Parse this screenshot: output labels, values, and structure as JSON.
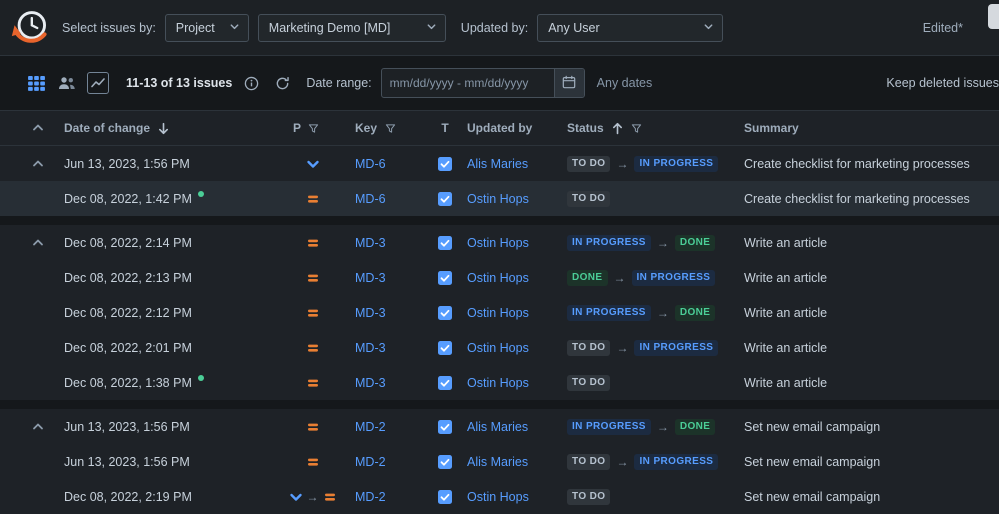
{
  "topbar": {
    "select_issues_label": "Select issues by:",
    "mode_dropdown": "Project",
    "project_dropdown": "Marketing Demo [MD]",
    "updated_by_label": "Updated by:",
    "user_dropdown": "Any User",
    "edited_label": "Edited*"
  },
  "toolbar": {
    "issues_count": "11-13 of 13 issues",
    "date_range_label": "Date range:",
    "date_range_placeholder": "mm/dd/yyyy - mm/dd/yyyy",
    "any_dates_label": "Any dates",
    "keep_deleted_label": "Keep deleted issues"
  },
  "icons": {
    "arrow_right": "→"
  },
  "colors": {
    "accent_blue": "#579DFF",
    "done_green": "#4BCE97",
    "medium_priority_orange": "#E97F33",
    "row_bg": "#1E2227",
    "page_bg": "#15181B"
  },
  "table": {
    "headers": {
      "date": "Date of change",
      "priority": "P",
      "key": "Key",
      "type": "T",
      "updated_by": "Updated by",
      "status": "Status",
      "summary": "Summary"
    },
    "groups": [
      {
        "rows": [
          {
            "date": "Jun 13, 2023, 1:56 PM",
            "dot": false,
            "priorities": [
              "low"
            ],
            "key": "MD-6",
            "user": "Alis Maries",
            "statuses": [
              {
                "label": "TO DO",
                "type": "todo"
              },
              {
                "label": "IN PROGRESS",
                "type": "inprogress"
              }
            ],
            "summary": "Create checklist for marketing processes",
            "selected": false
          },
          {
            "date": "Dec 08, 2022, 1:42 PM",
            "dot": true,
            "priorities": [
              "medium"
            ],
            "key": "MD-6",
            "user": "Ostin Hops",
            "statuses": [
              {
                "label": "TO DO",
                "type": "todo"
              }
            ],
            "summary": "Create checklist for marketing processes",
            "selected": true
          }
        ]
      },
      {
        "rows": [
          {
            "date": "Dec 08, 2022, 2:14 PM",
            "dot": false,
            "priorities": [
              "medium"
            ],
            "key": "MD-3",
            "user": "Ostin Hops",
            "statuses": [
              {
                "label": "IN PROGRESS",
                "type": "inprogress"
              },
              {
                "label": "DONE",
                "type": "done"
              }
            ],
            "summary": "Write an article",
            "selected": false
          },
          {
            "date": "Dec 08, 2022, 2:13 PM",
            "dot": false,
            "priorities": [
              "medium"
            ],
            "key": "MD-3",
            "user": "Ostin Hops",
            "statuses": [
              {
                "label": "DONE",
                "type": "done"
              },
              {
                "label": "IN PROGRESS",
                "type": "inprogress"
              }
            ],
            "summary": "Write an article",
            "selected": false
          },
          {
            "date": "Dec 08, 2022, 2:12 PM",
            "dot": false,
            "priorities": [
              "medium"
            ],
            "key": "MD-3",
            "user": "Ostin Hops",
            "statuses": [
              {
                "label": "IN PROGRESS",
                "type": "inprogress"
              },
              {
                "label": "DONE",
                "type": "done"
              }
            ],
            "summary": "Write an article",
            "selected": false
          },
          {
            "date": "Dec 08, 2022, 2:01 PM",
            "dot": false,
            "priorities": [
              "medium"
            ],
            "key": "MD-3",
            "user": "Ostin Hops",
            "statuses": [
              {
                "label": "TO DO",
                "type": "todo"
              },
              {
                "label": "IN PROGRESS",
                "type": "inprogress"
              }
            ],
            "summary": "Write an article",
            "selected": false
          },
          {
            "date": "Dec 08, 2022, 1:38 PM",
            "dot": true,
            "priorities": [
              "medium"
            ],
            "key": "MD-3",
            "user": "Ostin Hops",
            "statuses": [
              {
                "label": "TO DO",
                "type": "todo"
              }
            ],
            "summary": "Write an article",
            "selected": false
          }
        ]
      },
      {
        "rows": [
          {
            "date": "Jun 13, 2023, 1:56 PM",
            "dot": false,
            "priorities": [
              "medium"
            ],
            "key": "MD-2",
            "user": "Alis Maries",
            "statuses": [
              {
                "label": "IN PROGRESS",
                "type": "inprogress"
              },
              {
                "label": "DONE",
                "type": "done"
              }
            ],
            "summary": "Set new email campaign",
            "selected": false
          },
          {
            "date": "Jun 13, 2023, 1:56 PM",
            "dot": false,
            "priorities": [
              "medium"
            ],
            "key": "MD-2",
            "user": "Alis Maries",
            "statuses": [
              {
                "label": "TO DO",
                "type": "todo"
              },
              {
                "label": "IN PROGRESS",
                "type": "inprogress"
              }
            ],
            "summary": "Set new email campaign",
            "selected": false
          },
          {
            "date": "Dec 08, 2022, 2:19 PM",
            "dot": false,
            "priorities": [
              "low",
              "medium"
            ],
            "key": "MD-2",
            "user": "Ostin Hops",
            "statuses": [
              {
                "label": "TO DO",
                "type": "todo"
              }
            ],
            "summary": "Set new email campaign",
            "selected": false
          }
        ]
      }
    ]
  }
}
